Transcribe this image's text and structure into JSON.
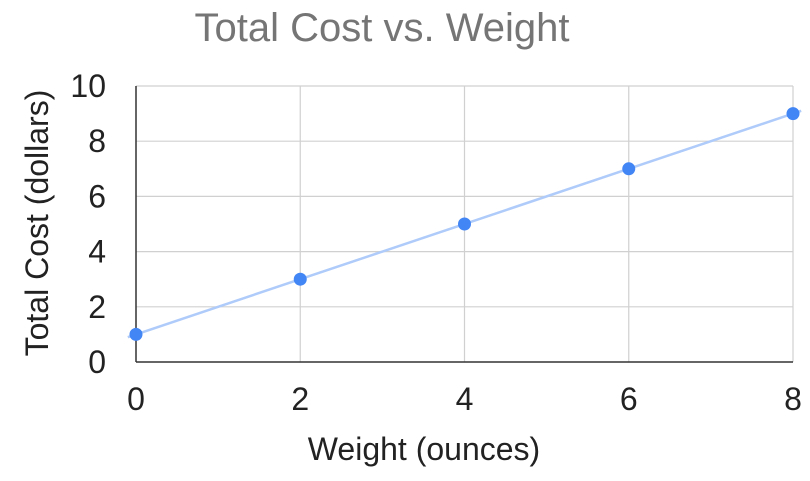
{
  "chart_data": {
    "type": "scatter",
    "title": "Total Cost vs. Weight",
    "xlabel": "Weight (ounces)",
    "ylabel": "Total Cost (dollars)",
    "xlim": [
      0,
      8
    ],
    "ylim": [
      0,
      10
    ],
    "x_ticks": [
      "0",
      "2",
      "4",
      "6",
      "8"
    ],
    "y_ticks": [
      "0",
      "2",
      "4",
      "6",
      "8",
      "10"
    ],
    "x_tick_values": [
      0,
      2,
      4,
      6,
      8
    ],
    "y_tick_values": [
      0,
      2,
      4,
      6,
      8,
      10
    ],
    "grid": true,
    "legend": "none",
    "series": [
      {
        "x": [
          0,
          2,
          4,
          6,
          8
        ],
        "y": [
          1,
          3,
          5,
          7,
          9
        ],
        "color": "#4285f4"
      }
    ],
    "trendline": {
      "slope": 1,
      "intercept": 1,
      "color": "#aecbfa"
    },
    "colors": {
      "grid": "#d0d0d0",
      "axis": "#333333"
    }
  }
}
